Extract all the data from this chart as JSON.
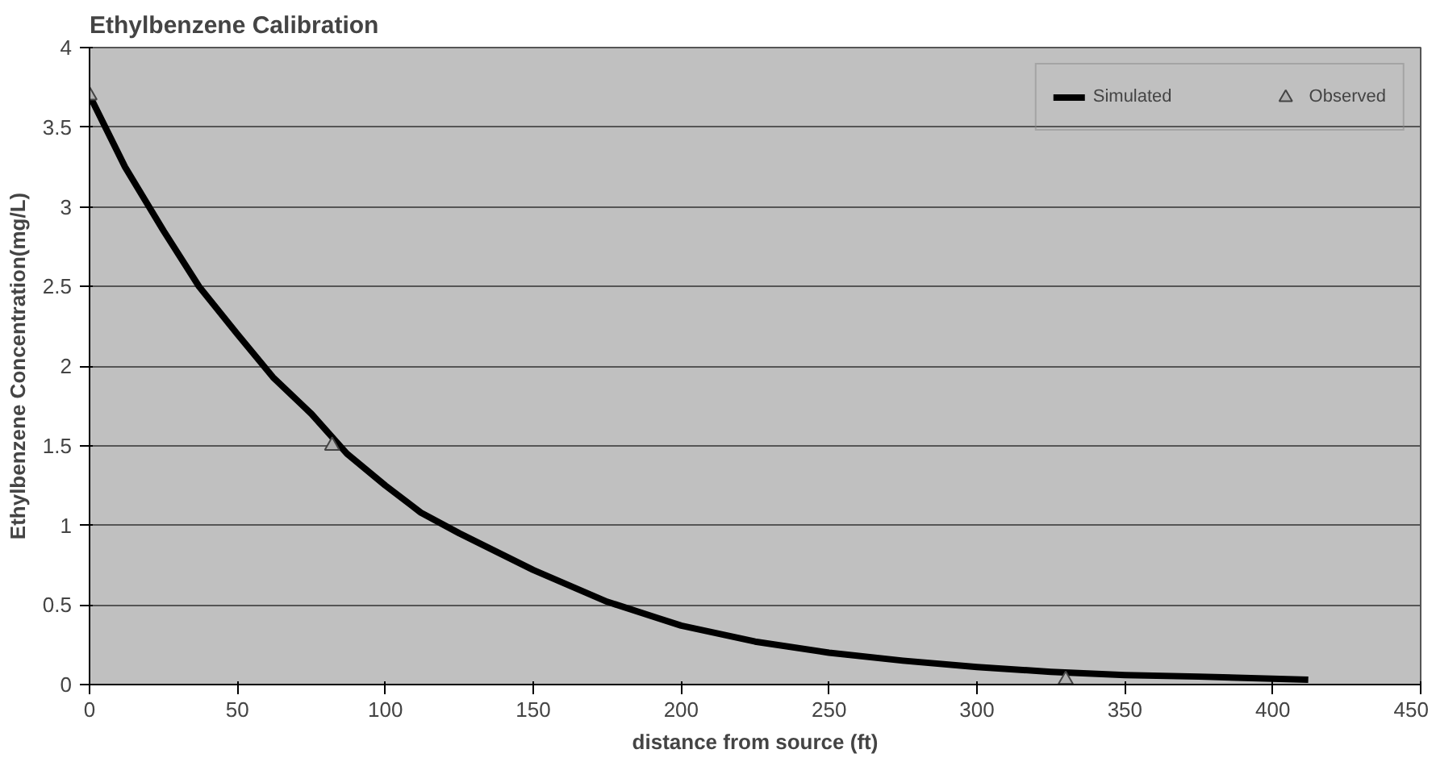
{
  "chart_data": {
    "type": "line",
    "title": "Ethylbenzene Calibration",
    "xlabel": "distance from source (ft)",
    "ylabel": "Ethylbenzene Concentration(mg/L)",
    "xlim": [
      0,
      450
    ],
    "xticks": [
      0,
      50,
      100,
      150,
      200,
      250,
      300,
      350,
      400,
      450
    ],
    "ylim": [
      0,
      4
    ],
    "yticks": [
      0,
      0.5,
      1,
      1.5,
      2,
      2.5,
      3,
      3.5,
      4
    ],
    "grid": "y",
    "legend": "top right",
    "series": [
      {
        "name": "Simulated",
        "color": "#000000",
        "marker": "none",
        "x": [
          0,
          12,
          25,
          37,
          50,
          62,
          75,
          87,
          100,
          112,
          125,
          150,
          175,
          200,
          225,
          250,
          275,
          300,
          325,
          350,
          375,
          412
        ],
        "values": [
          3.7,
          3.25,
          2.85,
          2.5,
          2.2,
          1.93,
          1.7,
          1.45,
          1.25,
          1.08,
          0.95,
          0.72,
          0.52,
          0.37,
          0.27,
          0.2,
          0.15,
          0.11,
          0.08,
          0.06,
          0.05,
          0.03
        ]
      },
      {
        "name": "Observed",
        "type": "scatter",
        "color": "#b0b0b0",
        "marker": "triangle",
        "x": [
          0,
          82,
          330
        ],
        "values": [
          3.7,
          1.5,
          0.03
        ]
      }
    ]
  }
}
